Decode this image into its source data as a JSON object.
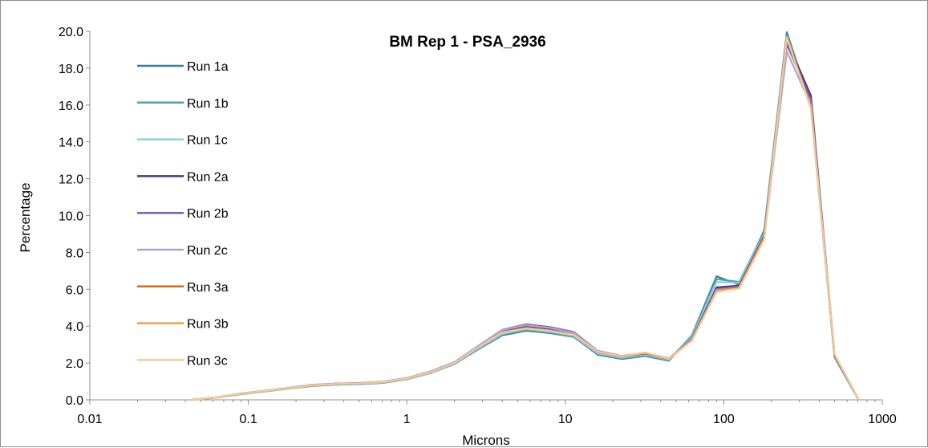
{
  "chart_data": {
    "type": "line",
    "title": "BM Rep 1 - PSA_2936",
    "xlabel": "Microns",
    "ylabel": "Percentage",
    "xscale": "log",
    "xlim": [
      0.01,
      1000
    ],
    "ylim": [
      0,
      20
    ],
    "x_tick_labels": [
      "0.01",
      "0.1",
      "1",
      "10",
      "100",
      "1000"
    ],
    "y_tick_labels": [
      "0.0",
      "2.0",
      "4.0",
      "6.0",
      "8.0",
      "10.0",
      "12.0",
      "14.0",
      "16.0",
      "18.0",
      "20.0"
    ],
    "grid": false,
    "legend_position": "top-left",
    "x": [
      0.044,
      0.0625,
      0.088,
      0.125,
      0.177,
      0.25,
      0.354,
      0.5,
      0.707,
      1,
      1.41,
      2,
      2.83,
      4,
      5.66,
      8,
      11.3,
      16,
      22.6,
      32,
      45,
      63,
      90,
      125,
      180,
      250,
      355,
      500,
      710
    ],
    "series": [
      {
        "name": "Run 1a",
        "color": "#3a7f8c",
        "values": [
          0.0,
          0.12,
          0.3,
          0.45,
          0.6,
          0.75,
          0.82,
          0.85,
          0.92,
          1.12,
          1.45,
          1.95,
          2.75,
          3.5,
          3.75,
          3.62,
          3.42,
          2.45,
          2.22,
          2.38,
          2.12,
          3.5,
          6.7,
          6.25,
          9.2,
          19.95,
          15.9,
          2.3,
          0.0
        ]
      },
      {
        "name": "Run 1b",
        "color": "#4aa3b5",
        "values": [
          0.0,
          0.12,
          0.3,
          0.45,
          0.6,
          0.76,
          0.83,
          0.86,
          0.93,
          1.13,
          1.46,
          1.96,
          2.78,
          3.55,
          3.8,
          3.66,
          3.45,
          2.5,
          2.26,
          2.42,
          2.16,
          3.45,
          6.55,
          6.4,
          9.1,
          19.8,
          15.85,
          2.32,
          0.0
        ]
      },
      {
        "name": "Run 1c",
        "color": "#8fd0dc",
        "values": [
          0.0,
          0.12,
          0.31,
          0.46,
          0.61,
          0.77,
          0.84,
          0.87,
          0.94,
          1.14,
          1.47,
          1.98,
          2.8,
          3.58,
          3.85,
          3.7,
          3.48,
          2.52,
          2.28,
          2.45,
          2.18,
          3.4,
          6.4,
          6.35,
          9.0,
          19.7,
          15.8,
          2.34,
          0.0
        ]
      },
      {
        "name": "Run 2a",
        "color": "#4b3577",
        "values": [
          0.0,
          0.13,
          0.32,
          0.47,
          0.63,
          0.8,
          0.87,
          0.9,
          0.97,
          1.17,
          1.52,
          2.03,
          2.9,
          3.72,
          3.98,
          3.82,
          3.6,
          2.62,
          2.35,
          2.52,
          2.22,
          3.3,
          6.1,
          6.2,
          8.9,
          19.5,
          16.5,
          2.4,
          0.0
        ]
      },
      {
        "name": "Run 2b",
        "color": "#7b62ad",
        "values": [
          0.0,
          0.13,
          0.33,
          0.48,
          0.64,
          0.81,
          0.88,
          0.91,
          0.98,
          1.18,
          1.54,
          2.05,
          2.93,
          3.8,
          4.1,
          3.95,
          3.68,
          2.66,
          2.38,
          2.55,
          2.24,
          3.28,
          6.0,
          6.15,
          8.85,
          19.3,
          16.3,
          2.42,
          0.0
        ]
      },
      {
        "name": "Run 2c",
        "color": "#b3a2d2",
        "values": [
          0.0,
          0.13,
          0.33,
          0.48,
          0.64,
          0.81,
          0.88,
          0.91,
          0.98,
          1.18,
          1.54,
          2.04,
          2.92,
          3.78,
          4.05,
          3.9,
          3.64,
          2.64,
          2.36,
          2.54,
          2.23,
          3.26,
          5.95,
          6.1,
          8.8,
          18.9,
          16.0,
          2.44,
          0.0
        ]
      },
      {
        "name": "Run 3a",
        "color": "#d26a10",
        "values": [
          0.0,
          0.13,
          0.32,
          0.47,
          0.62,
          0.79,
          0.86,
          0.89,
          0.96,
          1.16,
          1.5,
          2.01,
          2.86,
          3.66,
          3.9,
          3.76,
          3.54,
          2.6,
          2.34,
          2.54,
          2.2,
          3.25,
          5.9,
          6.1,
          8.8,
          19.6,
          15.9,
          2.46,
          0.0
        ]
      },
      {
        "name": "Run 3b",
        "color": "#f0a050",
        "values": [
          0.0,
          0.13,
          0.32,
          0.47,
          0.62,
          0.79,
          0.86,
          0.89,
          0.96,
          1.16,
          1.5,
          2.01,
          2.86,
          3.66,
          3.9,
          3.76,
          3.54,
          2.62,
          2.36,
          2.56,
          2.22,
          3.22,
          5.9,
          6.05,
          8.75,
          19.7,
          15.85,
          2.48,
          0.0
        ]
      },
      {
        "name": "Run 3c",
        "color": "#f5c89a",
        "values": [
          0.0,
          0.13,
          0.32,
          0.47,
          0.62,
          0.79,
          0.86,
          0.89,
          0.96,
          1.16,
          1.5,
          2.01,
          2.86,
          3.66,
          3.88,
          3.75,
          3.53,
          2.62,
          2.36,
          2.56,
          2.22,
          3.22,
          5.85,
          6.05,
          8.7,
          19.65,
          15.8,
          2.5,
          0.0
        ]
      }
    ]
  }
}
